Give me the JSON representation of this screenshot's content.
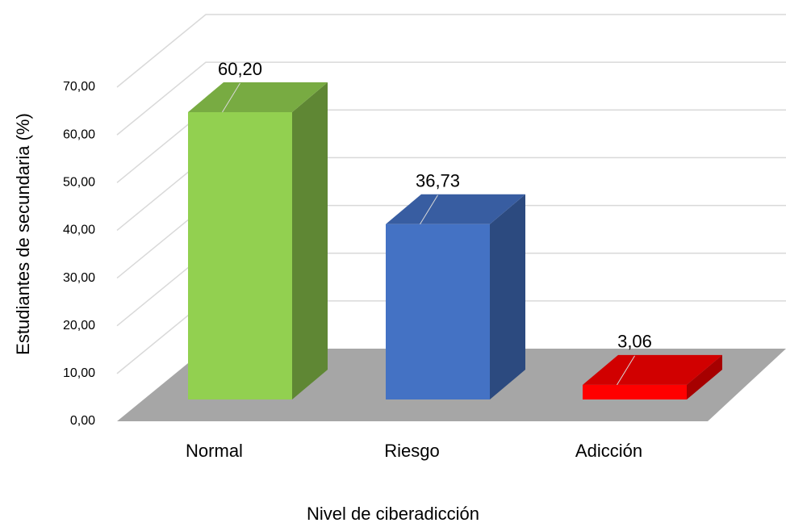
{
  "chart_data": {
    "type": "bar3d",
    "categories": [
      "Normal",
      "Riesgo",
      "Adicción"
    ],
    "values": [
      60.2,
      36.73,
      3.06
    ],
    "value_labels": [
      "60,20",
      "36,73",
      "3,06"
    ],
    "colors": [
      "#92d050",
      "#4472c4",
      "#ff0000"
    ],
    "ylabel": "Estudiantes de secundaria (%)",
    "xlabel": "Nivel de ciberadicción",
    "ylim": [
      0,
      70
    ],
    "yticks": [
      {
        "value": 0,
        "label": "0,00"
      },
      {
        "value": 10,
        "label": "10,00"
      },
      {
        "value": 20,
        "label": "20,00"
      },
      {
        "value": 30,
        "label": "30,00"
      },
      {
        "value": 40,
        "label": "40,00"
      },
      {
        "value": 50,
        "label": "50,00"
      },
      {
        "value": 60,
        "label": "60,00"
      },
      {
        "value": 70,
        "label": "70,00"
      }
    ],
    "grid": true
  }
}
